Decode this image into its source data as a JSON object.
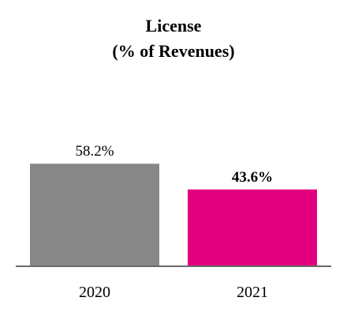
{
  "chart_data": {
    "type": "bar",
    "title": "License",
    "subtitle": "(% of Revenues)",
    "categories": [
      "2020",
      "2021"
    ],
    "values": [
      58.2,
      43.6
    ],
    "value_labels": [
      "58.2%",
      "43.6%"
    ],
    "value_label_bold": [
      false,
      true
    ],
    "colors": [
      "#878787",
      "#E3007E"
    ],
    "xlabel": "",
    "ylabel": "",
    "ylim": [
      0,
      100
    ],
    "grid": false,
    "legend": "none"
  }
}
